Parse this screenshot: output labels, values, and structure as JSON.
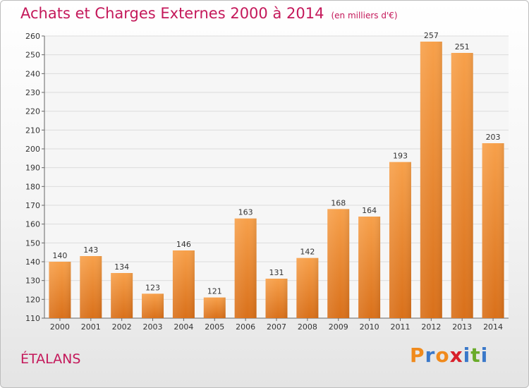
{
  "title": "Achats et Charges Externes 2000 à 2014",
  "subtitle": "(en milliers d'€)",
  "commune": "ÉTALANS",
  "logo": {
    "letters": [
      "P",
      "r",
      "o",
      "x",
      "i",
      "t",
      "i"
    ],
    "colors": [
      "#f08a1c",
      "#3a78c9",
      "#f08a1c",
      "#d8202a",
      "#3a78c9",
      "#6aab2a",
      "#3a78c9"
    ]
  },
  "chart_data": {
    "type": "bar",
    "categories": [
      "2000",
      "2001",
      "2002",
      "2003",
      "2004",
      "2005",
      "2006",
      "2007",
      "2008",
      "2009",
      "2010",
      "2011",
      "2012",
      "2013",
      "2014"
    ],
    "values": [
      140,
      143,
      134,
      123,
      146,
      121,
      163,
      131,
      142,
      168,
      164,
      193,
      257,
      251,
      203
    ],
    "title": "Achats et Charges Externes 2000 à 2014",
    "xlabel": "",
    "ylabel": "",
    "ylim": [
      110,
      260
    ],
    "yticks": [
      110,
      120,
      130,
      140,
      150,
      160,
      170,
      180,
      190,
      200,
      210,
      220,
      230,
      240,
      250,
      260
    ],
    "grid": true,
    "bar_color": "#f08a2a"
  }
}
